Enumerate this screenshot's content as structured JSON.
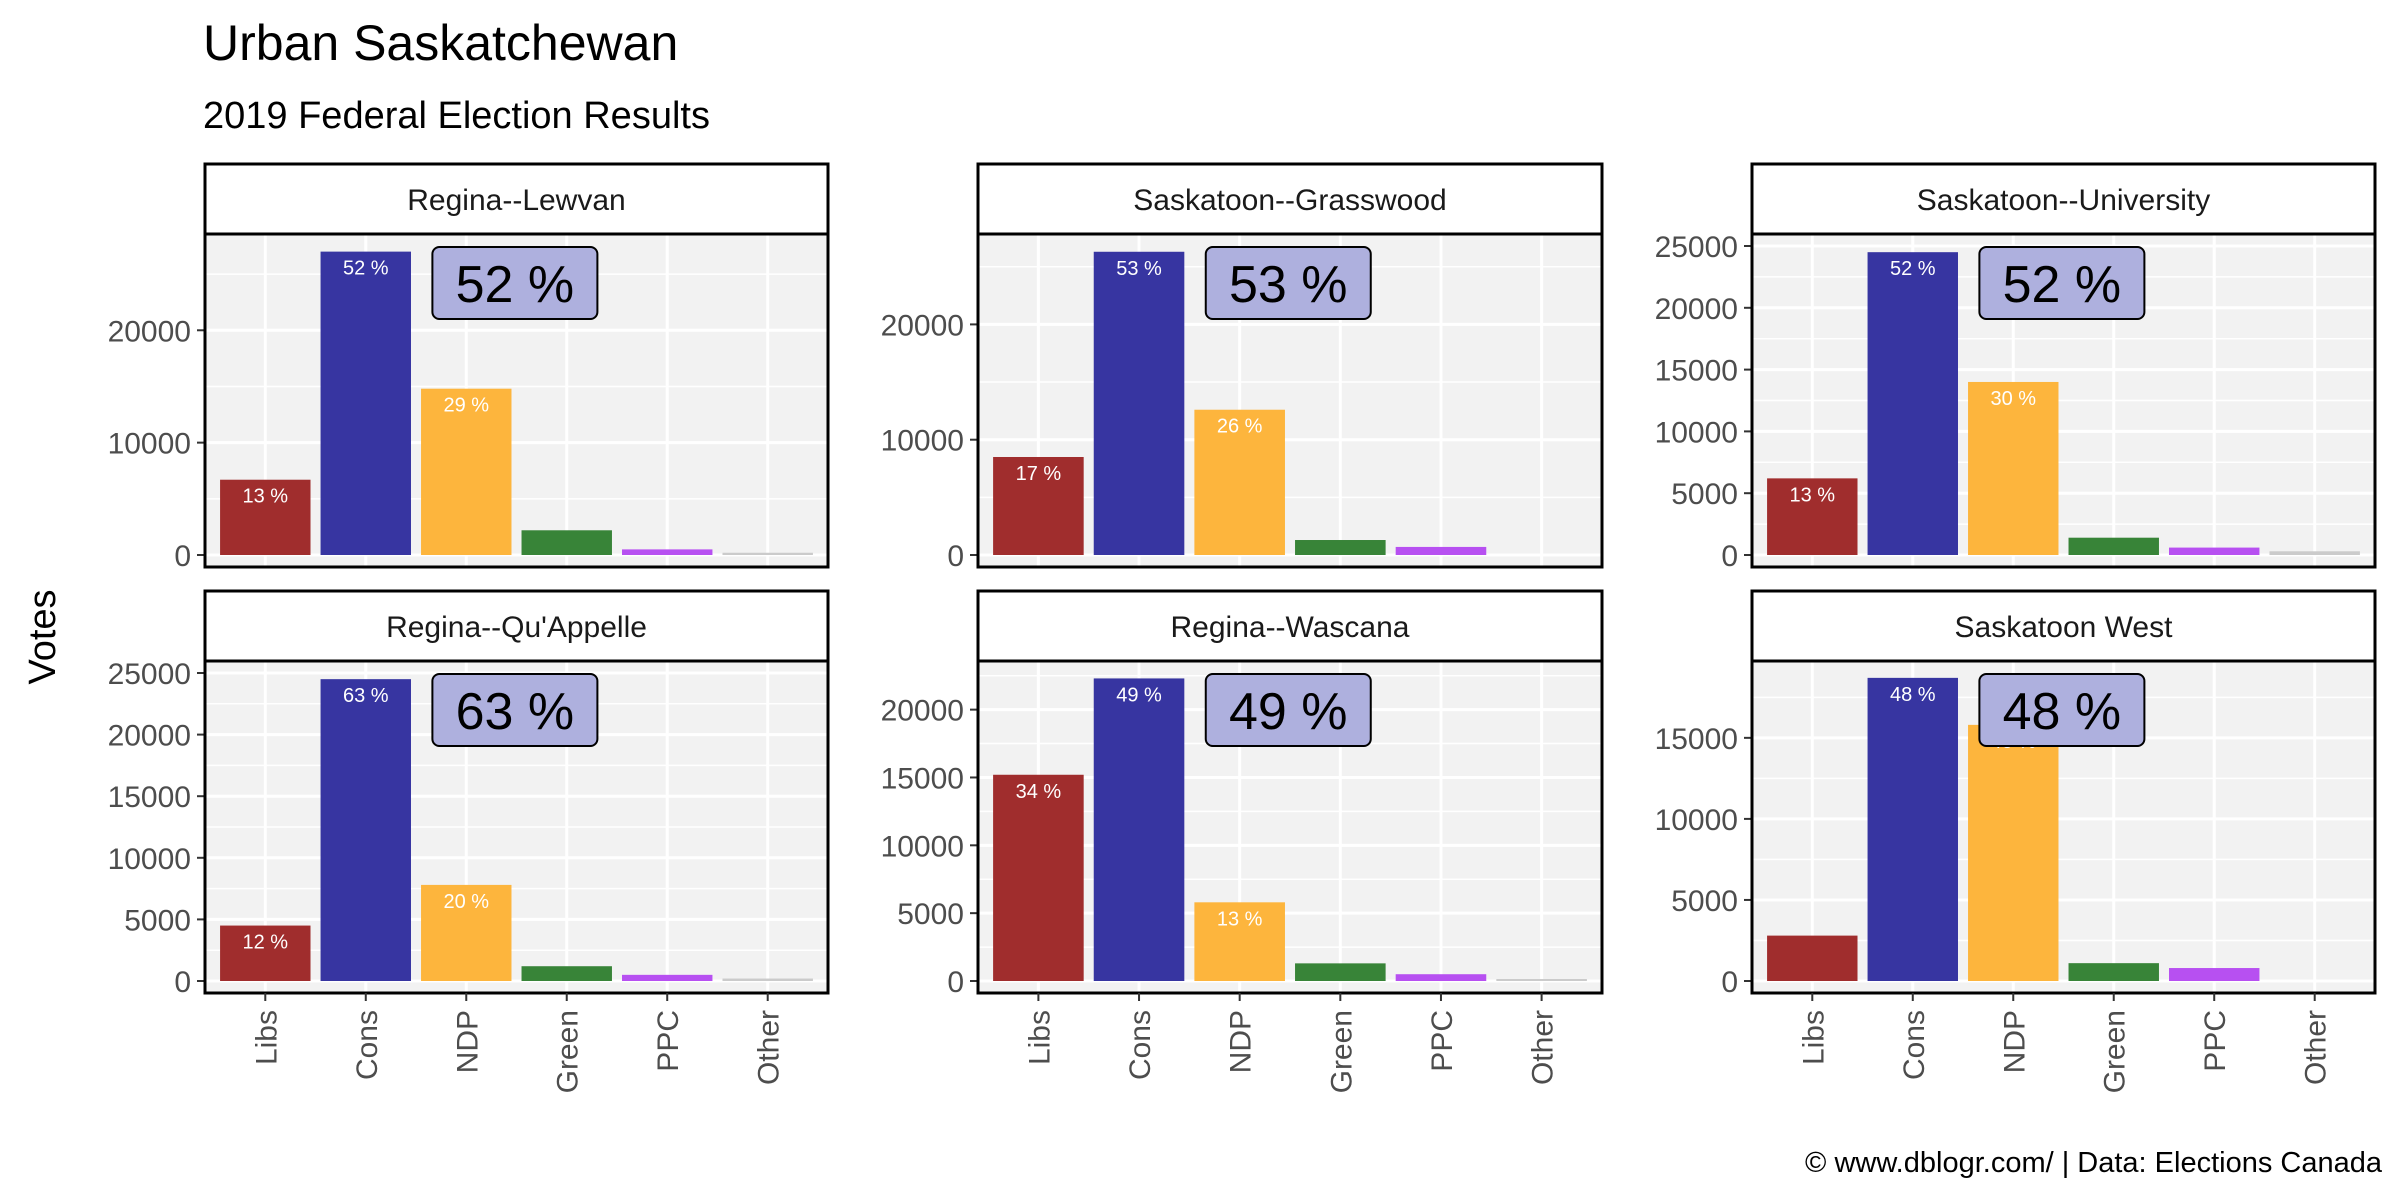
{
  "title": "Urban Saskatchewan",
  "subtitle": "2019 Federal Election Results",
  "caption": "© www.dblogr.com/  |  Data: Elections Canada",
  "ylabel": "Votes",
  "colors": {
    "Libs": "#9b2222",
    "Cons": "#2c2a9c",
    "NDP": "#fdb133",
    "Green": "#2d7d2d",
    "PPC": "#b347f0",
    "Other": "#c8c8c8",
    "panel_bg": "#f2f2f2",
    "grid": "#ffffff",
    "badge_fill": "#aeb0de"
  },
  "chart_data": {
    "type": "bar",
    "layout": "facet-grid-2x3",
    "categories": [
      "Libs",
      "Cons",
      "NDP",
      "Green",
      "PPC",
      "Other"
    ],
    "panels": [
      {
        "name": "Regina--Lewvan",
        "values": [
          6700,
          27000,
          14800,
          2200,
          500,
          200
        ],
        "labels": [
          "13 %",
          "52 %",
          "29 %",
          "",
          "",
          ""
        ],
        "badge": "52 %",
        "ylim": [
          0,
          27500
        ],
        "yticks": [
          0,
          10000,
          20000
        ],
        "ytick_labels": [
          "0",
          "10000",
          "20000"
        ]
      },
      {
        "name": "Saskatoon--Grasswood",
        "values": [
          8500,
          26300,
          12600,
          1300,
          700,
          0
        ],
        "labels": [
          "17 %",
          "53 %",
          "26 %",
          "",
          "",
          ""
        ],
        "badge": "53 %",
        "ylim": [
          0,
          26800
        ],
        "yticks": [
          0,
          10000,
          20000
        ],
        "ytick_labels": [
          "0",
          "10000",
          "20000"
        ]
      },
      {
        "name": "Saskatoon--University",
        "values": [
          6200,
          24500,
          14000,
          1400,
          600,
          300
        ],
        "labels": [
          "13 %",
          "52 %",
          "30 %",
          "",
          "",
          ""
        ],
        "badge": "52 %",
        "ylim": [
          0,
          25000
        ],
        "yticks": [
          0,
          5000,
          10000,
          15000,
          20000,
          25000
        ],
        "ytick_labels": [
          "0",
          "5000",
          "10000",
          "15000",
          "20000",
          "25000"
        ]
      },
      {
        "name": "Regina--Qu'Appelle",
        "values": [
          4500,
          24500,
          7800,
          1200,
          500,
          200
        ],
        "labels": [
          "12 %",
          "63 %",
          "20 %",
          "",
          "",
          ""
        ],
        "badge": "63 %",
        "ylim": [
          0,
          25000
        ],
        "yticks": [
          0,
          5000,
          10000,
          15000,
          20000,
          25000
        ],
        "ytick_labels": [
          "0",
          "5000",
          "10000",
          "15000",
          "20000",
          "25000"
        ]
      },
      {
        "name": "Regina--Wascana",
        "values": [
          15200,
          22300,
          5800,
          1300,
          500,
          100
        ],
        "labels": [
          "34 %",
          "49 %",
          "13 %",
          "",
          "",
          ""
        ],
        "badge": "49 %",
        "ylim": [
          0,
          22700
        ],
        "yticks": [
          0,
          5000,
          10000,
          15000,
          20000
        ],
        "ytick_labels": [
          "0",
          "5000",
          "10000",
          "15000",
          "20000"
        ]
      },
      {
        "name": "Saskatoon West",
        "values": [
          2800,
          18700,
          15800,
          1100,
          800,
          0
        ],
        "labels": [
          "",
          "48 %",
          "40 %",
          "",
          "",
          ""
        ],
        "badge": "48 %",
        "ylim": [
          0,
          19000
        ],
        "yticks": [
          0,
          5000,
          10000,
          15000
        ],
        "ytick_labels": [
          "0",
          "5000",
          "10000",
          "15000"
        ]
      }
    ]
  }
}
